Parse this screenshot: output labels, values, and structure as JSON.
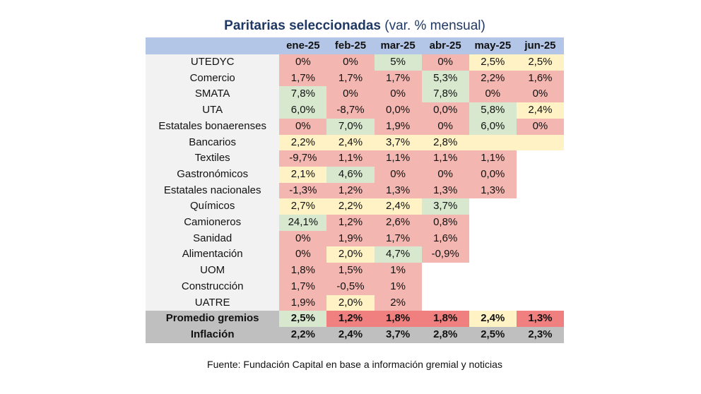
{
  "title": {
    "bold": "Paritarias seleccionadas",
    "normal": "(var. % mensual)"
  },
  "colors": {
    "header": "#b4c6e7",
    "red": "#f4b6b0",
    "green": "#d7e8cf",
    "yellow": "#fff2c4",
    "strong_red": "#f08080",
    "summary": "#bfbfbf",
    "label_bg": "#f2f2f2"
  },
  "chart_data": {
    "type": "table",
    "columns": [
      "ene-25",
      "feb-25",
      "mar-25",
      "abr-25",
      "may-25",
      "jun-25"
    ],
    "rows": [
      {
        "label": "UTEDYC",
        "values": [
          "0%",
          "0%",
          "5%",
          "0%",
          "2,5%",
          "2,5%"
        ],
        "colors": [
          "red",
          "red",
          "green",
          "red",
          "yellow",
          "yellow"
        ]
      },
      {
        "label": "Comercio",
        "values": [
          "1,7%",
          "1,7%",
          "1,7%",
          "5,3%",
          "2,2%",
          "1,6%"
        ],
        "colors": [
          "red",
          "red",
          "red",
          "green",
          "red",
          "red"
        ]
      },
      {
        "label": "SMATA",
        "values": [
          "7,8%",
          "0%",
          "0%",
          "7,8%",
          "0%",
          "0%"
        ],
        "colors": [
          "green",
          "red",
          "red",
          "green",
          "red",
          "red"
        ]
      },
      {
        "label": "UTA",
        "values": [
          "6,0%",
          "-8,7%",
          "0,0%",
          "0,0%",
          "5,8%",
          "2,4%"
        ],
        "colors": [
          "green",
          "red",
          "red",
          "red",
          "green",
          "yellow"
        ]
      },
      {
        "label": "Estatales bonaerenses",
        "values": [
          "0%",
          "7,0%",
          "1,9%",
          "0%",
          "6,0%",
          "0%"
        ],
        "colors": [
          "red",
          "green",
          "red",
          "red",
          "green",
          "red"
        ]
      },
      {
        "label": "Bancarios",
        "values": [
          "2,2%",
          "2,4%",
          "3,7%",
          "2,8%",
          "",
          ""
        ],
        "colors": [
          "yellow",
          "yellow",
          "yellow",
          "yellow",
          "yellow",
          "yellow"
        ]
      },
      {
        "label": "Textiles",
        "values": [
          "-9,7%",
          "1,1%",
          "1,1%",
          "1,1%",
          "1,1%",
          ""
        ],
        "colors": [
          "red",
          "red",
          "red",
          "red",
          "red",
          "empty"
        ]
      },
      {
        "label": "Gastronómicos",
        "values": [
          "2,1%",
          "4,6%",
          "0%",
          "0%",
          "0,0%",
          ""
        ],
        "colors": [
          "yellow",
          "green",
          "red",
          "red",
          "red",
          "empty"
        ]
      },
      {
        "label": "Estatales nacionales",
        "values": [
          "-1,3%",
          "1,2%",
          "1,3%",
          "1,3%",
          "1,3%",
          ""
        ],
        "colors": [
          "red",
          "red",
          "red",
          "red",
          "red",
          "empty"
        ]
      },
      {
        "label": "Químicos",
        "values": [
          "2,7%",
          "2,2%",
          "2,4%",
          "3,7%",
          "",
          ""
        ],
        "colors": [
          "yellow",
          "yellow",
          "yellow",
          "green",
          "empty",
          "empty"
        ]
      },
      {
        "label": "Camioneros",
        "values": [
          "24,1%",
          "1,2%",
          "2,6%",
          "0,8%",
          "",
          ""
        ],
        "colors": [
          "green",
          "red",
          "red",
          "red",
          "empty",
          "empty"
        ]
      },
      {
        "label": "Sanidad",
        "values": [
          "0%",
          "1,9%",
          "1,7%",
          "1,6%",
          "",
          ""
        ],
        "colors": [
          "red",
          "red",
          "red",
          "red",
          "empty",
          "empty"
        ]
      },
      {
        "label": "Alimentación",
        "values": [
          "0%",
          "2,0%",
          "4,7%",
          "-0,9%",
          "",
          ""
        ],
        "colors": [
          "red",
          "yellow",
          "green",
          "red",
          "empty",
          "empty"
        ]
      },
      {
        "label": "UOM",
        "values": [
          "1,8%",
          "1,5%",
          "1%",
          "",
          "",
          ""
        ],
        "colors": [
          "red",
          "red",
          "red",
          "empty",
          "empty",
          "empty"
        ]
      },
      {
        "label": "Construcción",
        "values": [
          "1,7%",
          "-0,5%",
          "1%",
          "",
          "",
          ""
        ],
        "colors": [
          "red",
          "red",
          "red",
          "empty",
          "empty",
          "empty"
        ]
      },
      {
        "label": "UATRE",
        "values": [
          "1,9%",
          "2,0%",
          "2%",
          "",
          "",
          ""
        ],
        "colors": [
          "red",
          "yellow",
          "red",
          "empty",
          "empty",
          "empty"
        ]
      }
    ],
    "summary": [
      {
        "label": "Promedio gremios",
        "values": [
          "2,5%",
          "1,2%",
          "1,8%",
          "1,8%",
          "2,4%",
          "1,3%"
        ],
        "colors": [
          "green",
          "strong_red",
          "strong_red",
          "strong_red",
          "yellow",
          "strong_red"
        ]
      },
      {
        "label": "Inflación",
        "values": [
          "2,2%",
          "2,4%",
          "3,7%",
          "2,8%",
          "2,5%",
          "2,3%"
        ],
        "colors": [
          "summary",
          "summary",
          "summary",
          "summary",
          "summary",
          "summary"
        ]
      }
    ]
  },
  "source": "Fuente: Fundación Capital en base a información gremial y noticias"
}
